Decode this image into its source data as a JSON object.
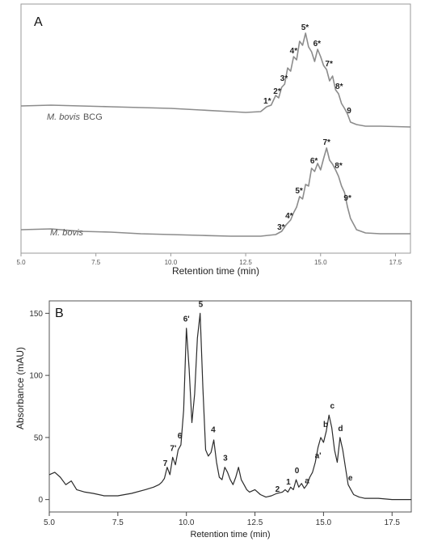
{
  "chart_data": [
    {
      "type": "line",
      "panel_label": "A",
      "xlabel": "Retention time (min)",
      "ylabel": "",
      "xlim": [
        5.0,
        18.0
      ],
      "xticks": [
        "5.0",
        "7.5",
        "10.0",
        "12.5",
        "15.0",
        "17.5"
      ],
      "grid": false,
      "line_color": "#8c8c8c",
      "series": [
        {
          "name": "M. bovis BCG",
          "name_italic": "M. bovis",
          "name_suffix": "BCG",
          "x": [
            5.0,
            6.0,
            7.0,
            8.0,
            9.0,
            10.0,
            11.0,
            12.0,
            12.5,
            13.0,
            13.2,
            13.35,
            13.5,
            13.6,
            13.7,
            13.8,
            13.9,
            14.0,
            14.1,
            14.2,
            14.3,
            14.4,
            14.5,
            14.6,
            14.7,
            14.8,
            14.9,
            15.0,
            15.1,
            15.2,
            15.3,
            15.4,
            15.5,
            15.6,
            15.7,
            15.8,
            15.9,
            16.0,
            16.2,
            16.5,
            17.0,
            18.0
          ],
          "y": [
            35,
            36,
            35,
            34,
            33,
            32,
            30,
            28,
            27,
            28,
            34,
            36,
            48,
            45,
            58,
            62,
            82,
            78,
            96,
            92,
            115,
            110,
            125,
            108,
            102,
            90,
            105,
            96,
            85,
            80,
            66,
            72,
            55,
            50,
            38,
            32,
            25,
            15,
            12,
            10,
            10,
            9
          ],
          "labels": [
            {
              "text": "1*",
              "x": 13.22,
              "y": 34
            },
            {
              "text": "2*",
              "x": 13.55,
              "y": 46
            },
            {
              "text": "3*",
              "x": 13.78,
              "y": 62
            },
            {
              "text": "4*",
              "x": 14.1,
              "y": 96
            },
            {
              "text": "5*",
              "x": 14.48,
              "y": 125
            },
            {
              "text": "6*",
              "x": 14.88,
              "y": 105
            },
            {
              "text": "7*",
              "x": 15.28,
              "y": 80
            },
            {
              "text": "8*",
              "x": 15.62,
              "y": 52
            },
            {
              "text": "9",
              "x": 15.95,
              "y": 22
            }
          ]
        },
        {
          "name": "M. bovis",
          "name_italic": "M. bovis",
          "name_suffix": "",
          "x": [
            5.0,
            6.0,
            7.0,
            8.0,
            9.0,
            10.0,
            11.0,
            12.0,
            12.5,
            13.0,
            13.5,
            13.7,
            13.85,
            14.0,
            14.1,
            14.2,
            14.3,
            14.4,
            14.5,
            14.6,
            14.7,
            14.8,
            14.9,
            15.0,
            15.1,
            15.2,
            15.3,
            15.4,
            15.5,
            15.6,
            15.7,
            15.8,
            15.9,
            16.0,
            16.2,
            16.5,
            17.0,
            18.0
          ],
          "y": [
            14,
            15,
            12,
            11,
            9,
            8,
            7,
            6,
            6,
            6,
            8,
            12,
            20,
            26,
            35,
            42,
            55,
            52,
            70,
            68,
            90,
            86,
            96,
            88,
            102,
            115,
            100,
            95,
            88,
            80,
            68,
            60,
            42,
            28,
            14,
            10,
            9,
            9
          ],
          "labels": [
            {
              "text": "3*",
              "x": 13.68,
              "y": 10
            },
            {
              "text": "4*",
              "x": 13.95,
              "y": 24
            },
            {
              "text": "5*",
              "x": 14.28,
              "y": 55
            },
            {
              "text": "6*",
              "x": 14.78,
              "y": 92
            },
            {
              "text": "7*",
              "x": 15.2,
              "y": 115
            },
            {
              "text": "8*",
              "x": 15.6,
              "y": 86
            },
            {
              "text": "9*",
              "x": 15.9,
              "y": 46
            }
          ]
        }
      ]
    },
    {
      "type": "line",
      "panel_label": "B",
      "xlabel": "Retention time (min)",
      "ylabel": "Absorbance (mAU)",
      "xlim": [
        5.0,
        18.2
      ],
      "ylim": [
        -10,
        160
      ],
      "xticks": [
        5.0,
        7.5,
        10.0,
        12.5,
        15.0,
        17.5
      ],
      "xtick_labels": [
        "5.0",
        "7.5",
        "10.0",
        "12.5",
        "15.0",
        "17.5"
      ],
      "yticks": [
        0,
        50,
        100,
        150
      ],
      "ytick_labels": [
        "0",
        "50",
        "100",
        "150"
      ],
      "grid": false,
      "line_color": "#2b2b2b",
      "series": [
        {
          "name": "",
          "x": [
            5.0,
            5.2,
            5.4,
            5.6,
            5.8,
            6.0,
            6.3,
            6.6,
            7.0,
            7.5,
            8.0,
            8.5,
            8.8,
            9.0,
            9.1,
            9.2,
            9.3,
            9.4,
            9.5,
            9.6,
            9.7,
            9.8,
            9.9,
            10.0,
            10.1,
            10.2,
            10.3,
            10.4,
            10.5,
            10.6,
            10.7,
            10.8,
            10.9,
            11.0,
            11.1,
            11.2,
            11.3,
            11.4,
            11.5,
            11.6,
            11.7,
            11.8,
            11.9,
            12.0,
            12.1,
            12.2,
            12.3,
            12.5,
            12.7,
            12.9,
            13.1,
            13.3,
            13.5,
            13.6,
            13.7,
            13.8,
            13.9,
            14.0,
            14.1,
            14.2,
            14.3,
            14.4,
            14.5,
            14.6,
            14.7,
            14.8,
            14.9,
            15.0,
            15.1,
            15.2,
            15.3,
            15.4,
            15.5,
            15.6,
            15.7,
            15.8,
            15.9,
            16.0,
            16.1,
            16.3,
            16.5,
            17.0,
            17.5,
            18.2
          ],
          "y": [
            20,
            22,
            18,
            12,
            15,
            8,
            6,
            5,
            3,
            3,
            5,
            8,
            10,
            12,
            14,
            17,
            26,
            20,
            34,
            28,
            40,
            44,
            72,
            138,
            105,
            62,
            85,
            130,
            150,
            90,
            40,
            35,
            38,
            48,
            30,
            18,
            16,
            26,
            22,
            16,
            12,
            18,
            26,
            16,
            12,
            8,
            6,
            8,
            4,
            2,
            3,
            5,
            6,
            8,
            6,
            10,
            8,
            16,
            10,
            13,
            9,
            12,
            18,
            22,
            30,
            42,
            50,
            46,
            55,
            68,
            58,
            40,
            30,
            50,
            40,
            26,
            12,
            8,
            4,
            2,
            1,
            1,
            0,
            0
          ],
          "labels": [
            {
              "text": "7",
              "x": 9.23,
              "y": 24
            },
            {
              "text": "7'",
              "x": 9.52,
              "y": 36
            },
            {
              "text": "6",
              "x": 9.76,
              "y": 46
            },
            {
              "text": "6'",
              "x": 10.0,
              "y": 140
            },
            {
              "text": "5",
              "x": 10.52,
              "y": 152
            },
            {
              "text": "4",
              "x": 10.98,
              "y": 51
            },
            {
              "text": "3",
              "x": 11.42,
              "y": 28
            },
            {
              "text": "2",
              "x": 13.32,
              "y": 3
            },
            {
              "text": "1",
              "x": 13.72,
              "y": 9
            },
            {
              "text": "0",
              "x": 14.03,
              "y": 18
            },
            {
              "text": "a",
              "x": 14.4,
              "y": 10
            },
            {
              "text": "a'",
              "x": 14.8,
              "y": 30
            },
            {
              "text": "b",
              "x": 15.08,
              "y": 55
            },
            {
              "text": "c",
              "x": 15.32,
              "y": 70
            },
            {
              "text": "d",
              "x": 15.62,
              "y": 52
            },
            {
              "text": "e",
              "x": 15.98,
              "y": 12
            }
          ]
        }
      ]
    }
  ]
}
